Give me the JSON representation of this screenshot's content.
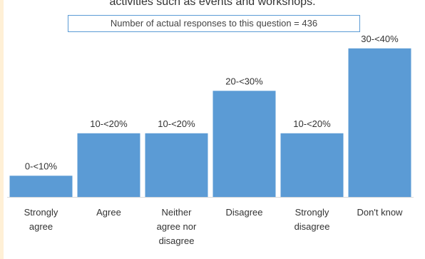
{
  "chart_data": {
    "type": "bar",
    "title": "activities such as events and workshops.",
    "subtitle": "Number of actual responses to this question = 436",
    "categories": [
      "Strongly agree",
      "Agree",
      "Neither agree nor disagree",
      "Disagree",
      "Strongly disagree",
      "Don't know"
    ],
    "category_lines": [
      [
        "Strongly",
        "agree"
      ],
      [
        "Agree"
      ],
      [
        "Neither",
        "agree nor",
        "disagree"
      ],
      [
        "Disagree"
      ],
      [
        "Strongly",
        "disagree"
      ],
      [
        "Don't know"
      ]
    ],
    "values": [
      5,
      15,
      15,
      25,
      15,
      35
    ],
    "value_labels": [
      "0-<10%",
      "10-<20%",
      "10-<20%",
      "20-<30%",
      "10-<20%",
      "30-<40%"
    ],
    "ylim": [
      0,
      40
    ],
    "grid": false,
    "bar_color": "#5b9bd5",
    "baseline_color": "#d9d9d9"
  }
}
